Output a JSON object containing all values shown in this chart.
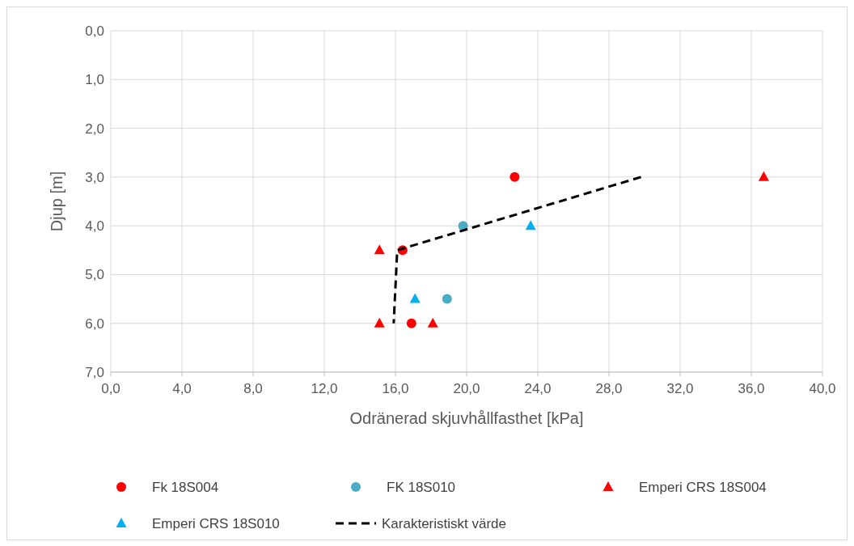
{
  "chart_data": {
    "type": "scatter",
    "xlabel": "Odränerad skjuvhållfasthet [kPa]",
    "ylabel": "Djup [m]",
    "xlim": [
      0,
      40
    ],
    "ylim": [
      7,
      0
    ],
    "xticks": [
      {
        "value": 0,
        "label": "0,0"
      },
      {
        "value": 4,
        "label": "4,0"
      },
      {
        "value": 8,
        "label": "8,0"
      },
      {
        "value": 12,
        "label": "12,0"
      },
      {
        "value": 16,
        "label": "16,0"
      },
      {
        "value": 20,
        "label": "20,0"
      },
      {
        "value": 24,
        "label": "24,0"
      },
      {
        "value": 28,
        "label": "28,0"
      },
      {
        "value": 32,
        "label": "32,0"
      },
      {
        "value": 36,
        "label": "36,0"
      },
      {
        "value": 40,
        "label": "40,0"
      }
    ],
    "yticks": [
      {
        "value": 0,
        "label": "0,0"
      },
      {
        "value": 1,
        "label": "1,0"
      },
      {
        "value": 2,
        "label": "2,0"
      },
      {
        "value": 3,
        "label": "3,0"
      },
      {
        "value": 4,
        "label": "4,0"
      },
      {
        "value": 5,
        "label": "5,0"
      },
      {
        "value": 6,
        "label": "6,0"
      },
      {
        "value": 7,
        "label": "7,0"
      }
    ],
    "grid": true,
    "legend": "bottom",
    "series": [
      {
        "name": "Fk 18S004",
        "marker": "circle",
        "color": "#ff0000",
        "x": [
          22.7,
          16.4,
          16.9
        ],
        "values": [
          3.0,
          4.5,
          6.0
        ]
      },
      {
        "name": "FK 18S010",
        "marker": "circle",
        "color": "#4bacc6",
        "x": [
          19.8,
          18.9
        ],
        "values": [
          4.0,
          5.5
        ]
      },
      {
        "name": "Emperi CRS 18S004",
        "marker": "triangle",
        "color": "#ff0000",
        "x": [
          36.7,
          15.1,
          15.1,
          18.1
        ],
        "values": [
          3.0,
          4.5,
          6.0,
          6.0
        ]
      },
      {
        "name": "Emperi CRS 18S010",
        "marker": "triangle",
        "color": "#00b0f0",
        "x": [
          23.6,
          17.1
        ],
        "values": [
          4.0,
          5.5
        ]
      },
      {
        "name": "Karakteristiskt värde",
        "type": "line",
        "marker": "none",
        "line_style": "dashed",
        "color": "#000000",
        "x": [
          29.8,
          16.1,
          15.9
        ],
        "values": [
          3.0,
          4.5,
          6.0
        ]
      }
    ]
  }
}
